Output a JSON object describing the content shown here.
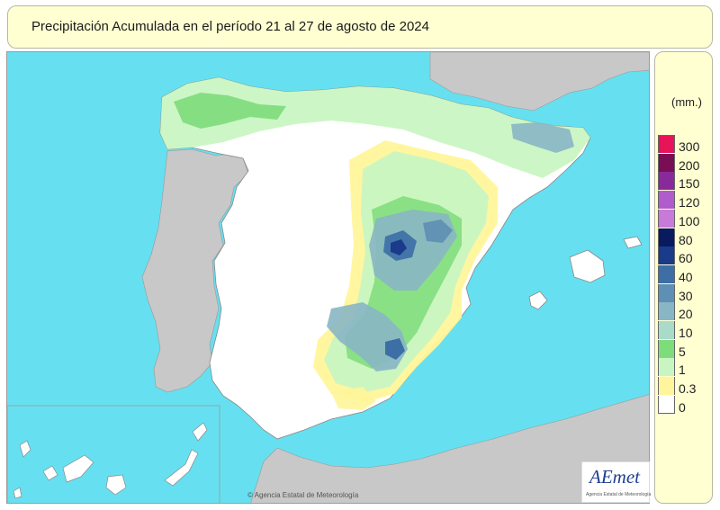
{
  "title": "Precipitación Acumulada en el período 21 al 27 de agosto de 2024",
  "legend": {
    "unit": "(mm.)",
    "classes": [
      {
        "label": "300",
        "color": "#e8145a"
      },
      {
        "label": "200",
        "color": "#7a0e55"
      },
      {
        "label": "150",
        "color": "#8a2a9a"
      },
      {
        "label": "120",
        "color": "#b05ccc"
      },
      {
        "label": "100",
        "color": "#c77ad8"
      },
      {
        "label": "80",
        "color": "#0a1a5e"
      },
      {
        "label": "60",
        "color": "#1a3a8a"
      },
      {
        "label": "40",
        "color": "#3d6ea6"
      },
      {
        "label": "30",
        "color": "#5e8fb4"
      },
      {
        "label": "20",
        "color": "#88b6c4"
      },
      {
        "label": "10",
        "color": "#a8dcc8"
      },
      {
        "label": "5",
        "color": "#7edc7a"
      },
      {
        "label": "1",
        "color": "#c9f5c2"
      },
      {
        "label": "0.3",
        "color": "#fff59a"
      },
      {
        "label": "0",
        "color": "#ffffff"
      }
    ]
  },
  "map": {
    "sea_color": "#66e0f0",
    "foreign_land_color": "#c8c8c8",
    "copyright": "© Agencia Estatal de Meteorología"
  },
  "logo": {
    "name": "AEmet",
    "subtitle": "Agencia Estatal de Meteorología"
  }
}
